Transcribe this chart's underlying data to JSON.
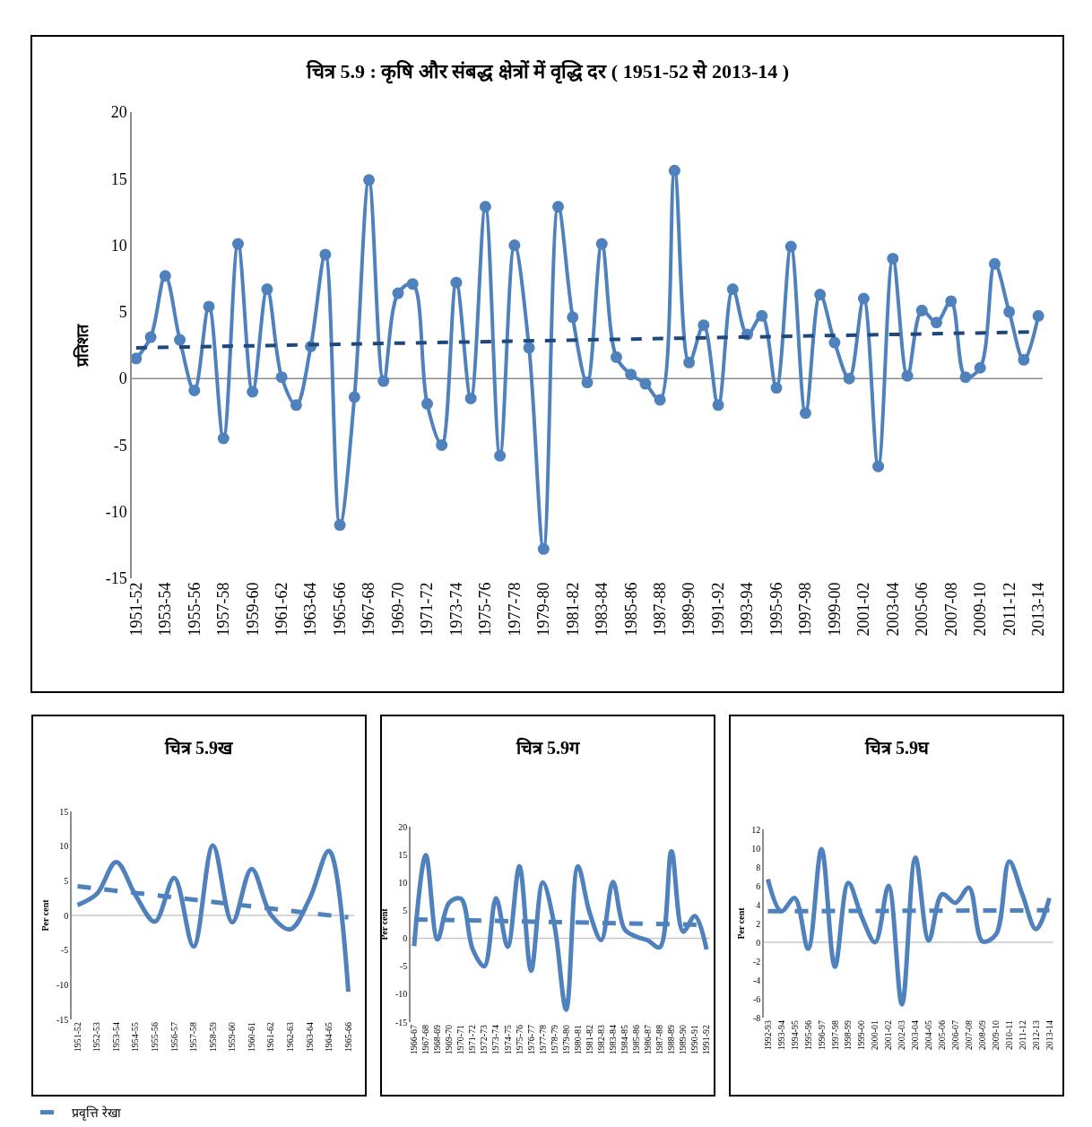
{
  "chart_data": [
    {
      "type": "line",
      "title": "चित्र 5.9 : कृषि और संबद्ध क्षेत्रों में वृद्धि दर ( 1951-52 से 2013-14 )",
      "ylabel": "प्रतिशत",
      "categories": [
        "1951-52",
        null,
        "1953-54",
        null,
        "1955-56",
        null,
        "1957-58",
        null,
        "1959-60",
        null,
        "1961-62",
        null,
        "1963-64",
        null,
        "1965-66",
        null,
        "1967-68",
        null,
        "1969-70",
        null,
        "1971-72",
        null,
        "1973-74",
        null,
        "1975-76",
        null,
        "1977-78",
        null,
        "1979-80",
        null,
        "1981-82",
        null,
        "1983-84",
        null,
        "1985-86",
        null,
        "1987-88",
        null,
        "1989-90",
        null,
        "1991-92",
        null,
        "1993-94",
        null,
        "1995-96",
        null,
        "1997-98",
        null,
        "1999-00",
        null,
        "2001-02",
        null,
        "2003-04",
        null,
        "2005-06",
        null,
        "2007-08",
        null,
        "2009-10",
        null,
        "2011-12",
        null,
        "2013-14"
      ],
      "series": [
        {
          "color": "#4f81bd",
          "marker": "circle",
          "line_style": "solid",
          "values": [
            1.5,
            3.1,
            7.7,
            2.9,
            -0.9,
            5.4,
            -4.5,
            10.1,
            -1.0,
            6.7,
            0.1,
            -2.0,
            2.4,
            9.3,
            -11.0,
            -1.4,
            14.9,
            -0.2,
            6.4,
            7.1,
            -1.9,
            -5.0,
            7.2,
            -1.5,
            12.9,
            -5.8,
            10.0,
            2.3,
            -12.8,
            12.9,
            4.6,
            -0.3,
            10.1,
            1.6,
            0.3,
            -0.4,
            -1.6,
            15.6,
            1.2,
            4.0,
            -2.0,
            6.7,
            3.3,
            4.7,
            -0.7,
            9.9,
            -2.6,
            6.3,
            2.7,
            0.0,
            6.0,
            -6.6,
            9.0,
            0.2,
            5.1,
            4.2,
            5.8,
            0.1,
            0.8,
            8.6,
            5.0,
            1.4,
            4.7
          ]
        },
        {
          "type": "line",
          "color": "#1f497d",
          "marker": "none",
          "line_style": "dashed",
          "x": [
            "1951-52",
            "2013-14"
          ],
          "values": [
            2.3,
            3.5
          ]
        }
      ],
      "ylim": [
        -15,
        20
      ],
      "yticks": [
        -15,
        -10,
        -5,
        0,
        5,
        10,
        15,
        20
      ],
      "grid": false,
      "ref_lines": [
        {
          "axis": "y",
          "value": 0,
          "color": "#8c8c8c"
        }
      ]
    },
    {
      "type": "line",
      "title": "चित्र 5.9ख",
      "ylabel": "Per cent",
      "categories": [
        "1951-52",
        "1952-53",
        "1953-54",
        "1954-55",
        "1955-56",
        "1956-57",
        "1957-58",
        "1958-59",
        "1959-60",
        "1960-61",
        "1961-62",
        "1962-63",
        "1963-64",
        "1964-65",
        "1965-66"
      ],
      "series": [
        {
          "color": "#4f81bd",
          "marker": "none",
          "line_style": "solid",
          "values": [
            1.5,
            3.1,
            7.7,
            2.9,
            -0.9,
            5.4,
            -4.5,
            10.1,
            -1.0,
            6.7,
            0.1,
            -2.0,
            2.4,
            9.3,
            -11.0
          ]
        },
        {
          "type": "line",
          "name": "प्रवृत्ति रेखा",
          "color": "#4f81bd",
          "marker": "none",
          "line_style": "dashed",
          "x": [
            "1951-52",
            "1965-66"
          ],
          "values": [
            4.2,
            -0.3
          ]
        }
      ],
      "ylim": [
        -15,
        15
      ],
      "yticks": [
        -15,
        -10,
        -5,
        0,
        5,
        10,
        15
      ],
      "grid": false,
      "legend": "bottom left",
      "ref_lines": [
        {
          "axis": "y",
          "value": 0,
          "color": "#c8c8c8"
        }
      ]
    },
    {
      "type": "line",
      "title": "चित्र 5.9ग",
      "ylabel": "Per cent",
      "categories": [
        "1966-67",
        "1967-68",
        "1968-69",
        "1969-70",
        "1970-71",
        "1971-72",
        "1972-73",
        "1973-74",
        "1974-75",
        "1975-76",
        "1976-77",
        "1977-78",
        "1978-79",
        "1979-80",
        "1980-81",
        "1981-82",
        "1982-83",
        "1983-84",
        "1984-85",
        "1985-86",
        "1986-87",
        "1987-88",
        "1988-89",
        "1989-90",
        "1990-91",
        "1991-92"
      ],
      "series": [
        {
          "color": "#4f81bd",
          "marker": "none",
          "line_style": "solid",
          "values": [
            -1.4,
            14.9,
            -0.2,
            6.4,
            7.1,
            -1.9,
            -5.0,
            7.2,
            -1.5,
            12.9,
            -5.8,
            10.0,
            2.3,
            -12.8,
            12.9,
            4.6,
            -0.3,
            10.1,
            1.6,
            0.3,
            -0.4,
            -1.6,
            15.6,
            1.2,
            4.0,
            -2.0
          ]
        },
        {
          "type": "line",
          "color": "#4f81bd",
          "marker": "none",
          "line_style": "dashed",
          "x": [
            "1966-67",
            "1991-92"
          ],
          "values": [
            3.4,
            2.4
          ]
        }
      ],
      "ylim": [
        -15,
        20
      ],
      "yticks": [
        -15,
        -10,
        -5,
        0,
        5,
        10,
        15,
        20
      ],
      "grid": false,
      "ref_lines": [
        {
          "axis": "y",
          "value": 0,
          "color": "#c8c8c8"
        }
      ]
    },
    {
      "type": "line",
      "title": "चित्र 5.9घ",
      "ylabel": "Per cent",
      "categories": [
        "1992-93",
        "1993-94",
        "1994-95",
        "1995-96",
        "1996-97",
        "1997-98",
        "1998-99",
        "1999-00",
        "2000-01",
        "2001-02",
        "2002-03",
        "2003-04",
        "2004-05",
        "2005-06",
        "2006-07",
        "2007-08",
        "2008-09",
        "2009-10",
        "2010-11",
        "2011-12",
        "2012-13",
        "2013-14"
      ],
      "series": [
        {
          "color": "#4f81bd",
          "marker": "none",
          "line_style": "solid",
          "values": [
            6.7,
            3.3,
            4.7,
            -0.7,
            9.9,
            -2.6,
            6.3,
            2.7,
            0.0,
            6.0,
            -6.6,
            9.0,
            0.2,
            5.1,
            4.2,
            5.8,
            0.1,
            0.8,
            8.6,
            5.0,
            1.4,
            4.7
          ]
        },
        {
          "type": "line",
          "color": "#4f81bd",
          "marker": "none",
          "line_style": "dashed",
          "x": [
            "1992-93",
            "2013-14"
          ],
          "values": [
            3.3,
            3.4
          ]
        }
      ],
      "ylim": [
        -8,
        12
      ],
      "yticks": [
        -8,
        -6,
        -4,
        -2,
        0,
        2,
        4,
        6,
        8,
        10,
        12
      ],
      "grid": false,
      "ref_lines": [
        {
          "axis": "y",
          "value": 0,
          "color": "#c8c8c8"
        }
      ]
    }
  ]
}
